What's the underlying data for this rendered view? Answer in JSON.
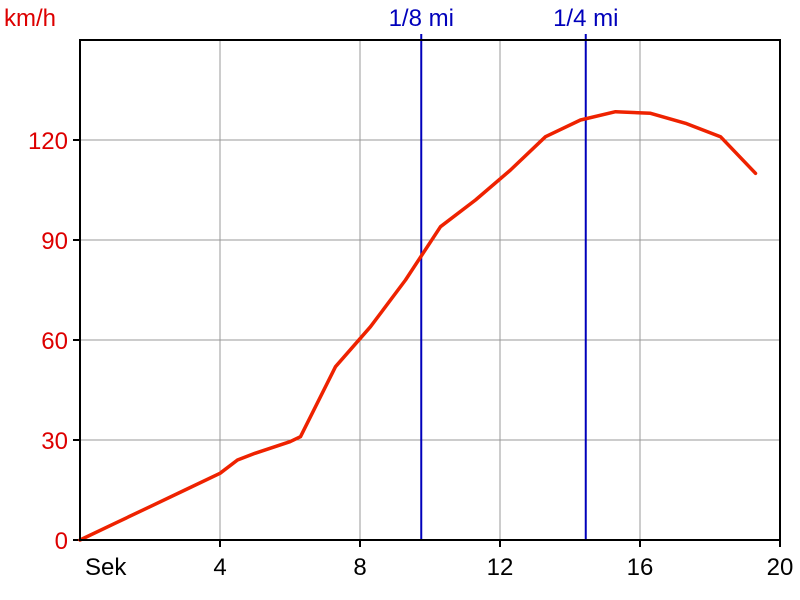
{
  "chart_data": {
    "type": "line",
    "title": "",
    "ylabel": "km/h",
    "xlabel": "Sek",
    "xlim": [
      0,
      20
    ],
    "ylim": [
      0,
      150
    ],
    "x_ticks": [
      4,
      8,
      12,
      16,
      20
    ],
    "y_ticks": [
      0,
      30,
      60,
      90,
      120
    ],
    "grid": true,
    "series": [
      {
        "x": [
          0,
          1,
          2,
          3,
          4,
          4.5,
          5,
          6,
          6.3,
          7.3,
          8.3,
          9.3,
          10.3,
          11.3,
          12.3,
          13.3,
          14.3,
          15.3,
          16.3,
          17.3,
          18.3,
          19.3
        ],
        "y": [
          0,
          5,
          10,
          15,
          20,
          24,
          26,
          29.5,
          31,
          52,
          64,
          78,
          94,
          102,
          111,
          121,
          126,
          128.5,
          128,
          125,
          121,
          110
        ],
        "color": "#ee2200"
      }
    ],
    "markers": [
      {
        "x": 9.75,
        "label": "1/8 mi",
        "color": "#0000bb"
      },
      {
        "x": 14.45,
        "label": "1/4 mi",
        "color": "#0000bb"
      }
    ],
    "colors": {
      "axis_text_y": "#dd0000",
      "axis_text_x": "#000000",
      "grid": "#999999",
      "frame": "#000000"
    }
  }
}
